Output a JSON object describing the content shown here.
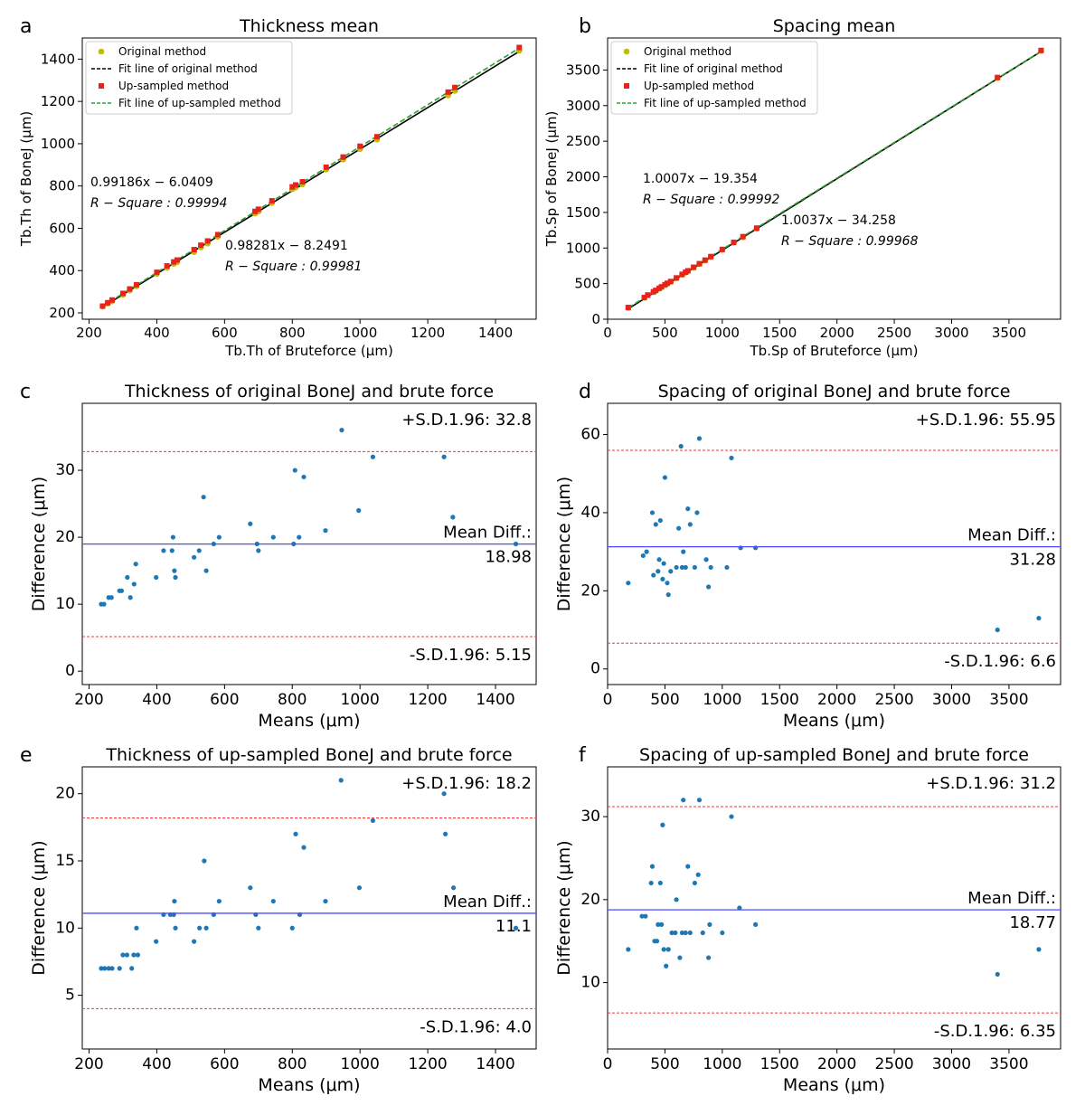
{
  "chart_data": [
    {
      "panel": "a",
      "type": "scatter",
      "title": "Thickness mean",
      "xlabel": "Tb.Th of Bruteforce (μm)",
      "ylabel": "Tb.Th of BoneJ (μm)",
      "xlim": [
        180,
        1520
      ],
      "ylim": [
        170,
        1500
      ],
      "xticks": [
        200,
        400,
        600,
        800,
        1000,
        1200,
        1400
      ],
      "yticks": [
        200,
        400,
        600,
        800,
        1000,
        1200,
        1400
      ],
      "legend": [
        "Original method",
        "Fit line of original method",
        "Up-sampled method",
        "Fit line of up-sampled method"
      ],
      "legend_loc": "top-left",
      "colors": {
        "original": "#bfbf00",
        "upsampled": "#e8221c",
        "fit_original": "#000000",
        "fit_upsampled": "#2ca02c"
      },
      "fit_original": {
        "slope": 0.98281,
        "intercept": -8.2491
      },
      "fit_upsampled": {
        "slope": 0.99186,
        "intercept": -6.0409
      },
      "annotations": [
        {
          "eq": "0.99186x − 6.0409",
          "r2": "R − Square : 0.99994"
        },
        {
          "eq": "0.98281x − 8.2491",
          "r2": "R − Square : 0.99981"
        }
      ],
      "series": [
        {
          "name": "Original method",
          "x": [
            240,
            255,
            268,
            300,
            320,
            340,
            400,
            430,
            450,
            460,
            510,
            530,
            550,
            580,
            690,
            700,
            740,
            800,
            810,
            830,
            900,
            950,
            1000,
            1050,
            1260,
            1280,
            1470
          ],
          "y": [
            230,
            244,
            255,
            286,
            306,
            326,
            384,
            413,
            432,
            440,
            488,
            510,
            528,
            560,
            670,
            680,
            720,
            785,
            793,
            808,
            878,
            925,
            975,
            1020,
            1228,
            1250,
            1440
          ]
        },
        {
          "name": "Up-sampled method",
          "x": [
            240,
            255,
            268,
            300,
            320,
            340,
            400,
            430,
            450,
            460,
            510,
            530,
            550,
            580,
            690,
            700,
            740,
            800,
            810,
            830,
            900,
            950,
            1000,
            1050,
            1260,
            1280,
            1470
          ],
          "y": [
            232,
            248,
            261,
            292,
            313,
            333,
            392,
            422,
            441,
            450,
            499,
            520,
            540,
            570,
            680,
            690,
            730,
            796,
            805,
            820,
            889,
            937,
            988,
            1033,
            1244,
            1266,
            1455
          ]
        }
      ]
    },
    {
      "panel": "b",
      "type": "scatter",
      "title": "Spacing mean",
      "xlabel": "Tb.Sp of Bruteforce (μm)",
      "ylabel": "Tb.Sp of BoneJ (μm)",
      "xlim": [
        0,
        3950
      ],
      "ylim": [
        0,
        3950
      ],
      "xticks": [
        0,
        500,
        1000,
        1500,
        2000,
        2500,
        3000,
        3500
      ],
      "yticks": [
        0,
        500,
        1000,
        1500,
        2000,
        2500,
        3000,
        3500
      ],
      "legend": [
        "Original method",
        "Fit line of original method",
        "Up-sampled method",
        "Fit line of up-sampled method"
      ],
      "legend_loc": "top-left",
      "colors": {
        "original": "#bfbf00",
        "upsampled": "#e8221c",
        "fit_original": "#000000",
        "fit_upsampled": "#2ca02c"
      },
      "fit_original": {
        "slope": 1.0037,
        "intercept": -34.258
      },
      "fit_upsampled": {
        "slope": 1.0007,
        "intercept": -19.354
      },
      "annotations": [
        {
          "eq": "1.0007x − 19.354",
          "r2": "R − Square : 0.99992"
        },
        {
          "eq": "1.0037x − 34.258",
          "r2": "R − Square : 0.99968"
        }
      ],
      "series": [
        {
          "name": "Original method",
          "x": [
            180,
            320,
            350,
            400,
            420,
            450,
            470,
            500,
            520,
            550,
            600,
            650,
            680,
            700,
            750,
            800,
            850,
            900,
            1000,
            1100,
            1180,
            1300,
            3400,
            3780
          ],
          "y": [
            160,
            300,
            335,
            380,
            400,
            430,
            450,
            480,
            500,
            525,
            575,
            625,
            655,
            675,
            725,
            775,
            825,
            875,
            975,
            1075,
            1150,
            1270,
            3390,
            3770
          ]
        },
        {
          "name": "Up-sampled method",
          "x": [
            180,
            320,
            350,
            400,
            420,
            450,
            470,
            500,
            520,
            550,
            600,
            650,
            680,
            700,
            750,
            800,
            850,
            900,
            1000,
            1100,
            1180,
            1300,
            3400,
            3780
          ],
          "y": [
            165,
            305,
            340,
            385,
            405,
            435,
            455,
            485,
            505,
            530,
            580,
            630,
            660,
            680,
            730,
            780,
            830,
            880,
            980,
            1080,
            1160,
            1280,
            3395,
            3775
          ]
        }
      ]
    },
    {
      "panel": "c",
      "type": "scatter",
      "title": "Thickness of original BoneJ and brute force",
      "xlabel": "Means (μm)",
      "ylabel": "Difference (μm)",
      "xlim": [
        180,
        1520
      ],
      "ylim": [
        -2,
        40
      ],
      "xticks": [
        200,
        400,
        600,
        800,
        1000,
        1200,
        1400
      ],
      "yticks": [
        0,
        10,
        20,
        30
      ],
      "mean_diff": 18.98,
      "upper_loa": 32.8,
      "lower_loa": 5.15,
      "labels": {
        "upper": "+S.D.1.96: 32.8",
        "mean_label": "Mean Diff.:",
        "mean_value": "18.98",
        "lower": "-S.D.1.96: 5.15"
      },
      "x": [
        236,
        244,
        258,
        266,
        290,
        296,
        313,
        322,
        333,
        338,
        398,
        420,
        445,
        448,
        452,
        455,
        510,
        525,
        538,
        546,
        568,
        584,
        676,
        696,
        700,
        744,
        804,
        808,
        820,
        834,
        898,
        946,
        996,
        1038,
        1248,
        1274,
        1460
      ],
      "y": [
        10,
        10,
        11,
        11,
        12,
        12,
        14,
        11,
        13,
        16,
        14,
        18,
        18,
        20,
        15,
        14,
        17,
        18,
        26,
        15,
        19,
        20,
        22,
        19,
        18,
        20,
        19,
        30,
        20,
        29,
        21,
        36,
        24,
        32,
        32,
        23,
        19
      ]
    },
    {
      "panel": "d",
      "type": "scatter",
      "title": "Spacing of original BoneJ and brute force",
      "xlabel": "Means (μm)",
      "ylabel": "Difference (μm)",
      "xlim": [
        0,
        3950
      ],
      "ylim": [
        -4,
        68
      ],
      "xticks": [
        0,
        500,
        1000,
        1500,
        2000,
        2500,
        3000,
        3500
      ],
      "yticks": [
        0,
        20,
        40,
        60
      ],
      "mean_diff": 31.28,
      "upper_loa": 55.95,
      "lower_loa": 6.6,
      "labels": {
        "upper": "+S.D.1.96: 55.95",
        "mean_label": "Mean Diff.:",
        "mean_value": "31.28",
        "lower": "-S.D.1.96: 6.6"
      },
      "x": [
        180,
        310,
        340,
        390,
        400,
        420,
        440,
        450,
        460,
        480,
        490,
        500,
        520,
        530,
        550,
        600,
        620,
        640,
        650,
        660,
        680,
        700,
        720,
        760,
        780,
        800,
        860,
        880,
        900,
        1040,
        1080,
        1160,
        1290,
        3400,
        3760
      ],
      "y": [
        22,
        29,
        30,
        40,
        24,
        37,
        25,
        28,
        38,
        23,
        27,
        49,
        22,
        19,
        25,
        26,
        36,
        57,
        26,
        30,
        26,
        41,
        37,
        26,
        40,
        59,
        28,
        21,
        26,
        26,
        54,
        31,
        31,
        10,
        13
      ]
    },
    {
      "panel": "e",
      "type": "scatter",
      "title": "Thickness of up-sampled BoneJ and brute force",
      "xlabel": "Means (μm)",
      "ylabel": "Difference (μm)",
      "xlim": [
        180,
        1520
      ],
      "ylim": [
        1,
        22
      ],
      "xticks": [
        200,
        400,
        600,
        800,
        1000,
        1200,
        1400
      ],
      "yticks": [
        5,
        10,
        15,
        20
      ],
      "mean_diff": 11.1,
      "upper_loa": 18.2,
      "lower_loa": 4.0,
      "labels": {
        "upper": "+S.D.1.96: 18.2",
        "mean_label": "Mean Diff.:",
        "mean_value": "11.1",
        "lower": "-S.D.1.96: 4.0"
      },
      "x": [
        236,
        246,
        258,
        268,
        290,
        300,
        312,
        326,
        332,
        340,
        344,
        398,
        420,
        440,
        450,
        452,
        455,
        510,
        526,
        540,
        546,
        568,
        584,
        676,
        692,
        700,
        744,
        800,
        810,
        822,
        834,
        898,
        944,
        998,
        1038,
        1248,
        1252,
        1276,
        1460
      ],
      "y": [
        7,
        7,
        7,
        7,
        7,
        8,
        8,
        7,
        8,
        10,
        8,
        9,
        11,
        11,
        11,
        12,
        10,
        9,
        10,
        15,
        10,
        11,
        12,
        13,
        11,
        10,
        12,
        10,
        17,
        11,
        16,
        12,
        21,
        13,
        18,
        20,
        17,
        13,
        10
      ]
    },
    {
      "panel": "f",
      "type": "scatter",
      "title": "Spacing of up-sampled BoneJ and brute force",
      "xlabel": "Means (μm)",
      "ylabel": "Difference (μm)",
      "xlim": [
        0,
        3950
      ],
      "ylim": [
        2,
        36
      ],
      "xticks": [
        0,
        500,
        1000,
        1500,
        2000,
        2500,
        3000,
        3500
      ],
      "yticks": [
        10,
        20,
        30
      ],
      "mean_diff": 18.77,
      "upper_loa": 31.2,
      "lower_loa": 6.35,
      "labels": {
        "upper": "+S.D.1.96: 31.2",
        "mean_label": "Mean Diff.:",
        "mean_value": "18.77",
        "lower": "-S.D.1.96: 6.35"
      },
      "x": [
        180,
        300,
        330,
        380,
        390,
        410,
        430,
        440,
        460,
        470,
        480,
        490,
        510,
        530,
        560,
        590,
        600,
        630,
        650,
        660,
        680,
        700,
        720,
        760,
        790,
        800,
        830,
        880,
        890,
        1000,
        1080,
        1150,
        1290,
        3400,
        3760
      ],
      "y": [
        14,
        18,
        18,
        22,
        24,
        15,
        15,
        17,
        22,
        17,
        29,
        14,
        12,
        14,
        16,
        16,
        20,
        13,
        16,
        32,
        16,
        24,
        16,
        22,
        23,
        32,
        16,
        13,
        17,
        16,
        30,
        19,
        17,
        11,
        14
      ]
    }
  ]
}
